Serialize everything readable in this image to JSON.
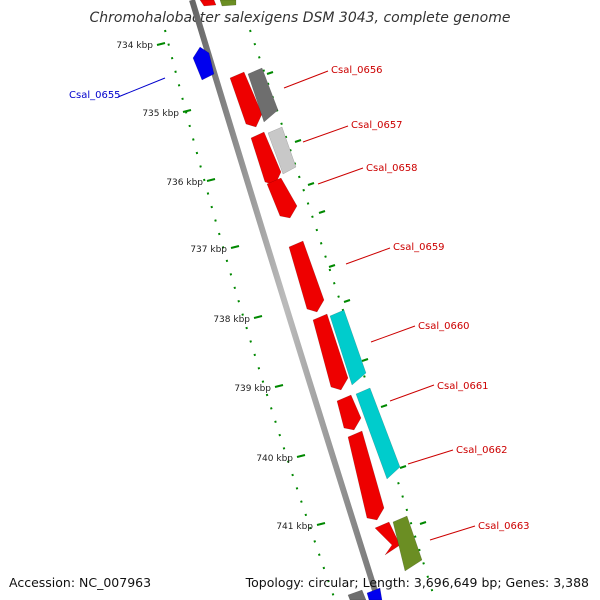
{
  "title": "Chromohalobacter salexigens DSM 3043, complete genome",
  "footer": {
    "accession": "Accession: NC_007963",
    "info": "Topology: circular; Length: 3,696,649 bp; Genes: 3,388"
  },
  "colors": {
    "forward": "#ee0000",
    "reverse_blue": "#0000ee",
    "cyan": "#00cccc",
    "olive": "#6b8e23",
    "gray_dark": "#6e6e6e",
    "gray_light": "#c8c8c8",
    "tick_green": "#008800",
    "backbone": "#888888",
    "label_red": "#cc0000",
    "label_blue": "#0000cc"
  },
  "ticks": [
    "734 kbp",
    "735 kbp",
    "736 kbp",
    "737 kbp",
    "738 kbp",
    "739 kbp",
    "740 kbp",
    "741 kbp"
  ],
  "gene_labels": [
    "Csal_0655",
    "Csal_0656",
    "Csal_0657",
    "Csal_0658",
    "Csal_0659",
    "Csal_0660",
    "Csal_0661",
    "Csal_0662",
    "Csal_0663"
  ]
}
